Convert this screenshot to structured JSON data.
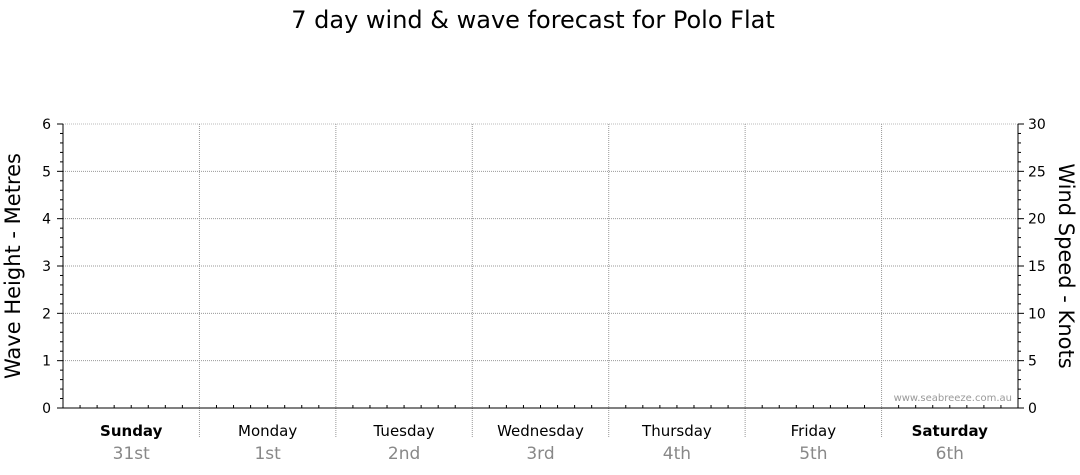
{
  "chart_data": {
    "type": "line",
    "title": "7 day wind & wave forecast for Polo Flat",
    "left_axis": {
      "label": "Wave Height - Metres",
      "range": [
        0,
        6
      ],
      "ticks": [
        "0",
        "1",
        "2",
        "3",
        "4",
        "5",
        "6"
      ]
    },
    "right_axis": {
      "label": "Wind Speed - Knots",
      "range": [
        0,
        30
      ],
      "ticks": [
        "0",
        "5",
        "10",
        "15",
        "20",
        "25",
        "30"
      ]
    },
    "days": [
      {
        "name": "Sunday",
        "date": "31st",
        "bold": true
      },
      {
        "name": "Monday",
        "date": "1st",
        "bold": false
      },
      {
        "name": "Tuesday",
        "date": "2nd",
        "bold": false
      },
      {
        "name": "Wednesday",
        "date": "3rd",
        "bold": false
      },
      {
        "name": "Thursday",
        "date": "4th",
        "bold": false
      },
      {
        "name": "Friday",
        "date": "5th",
        "bold": false
      },
      {
        "name": "Saturday",
        "date": "6th",
        "bold": true
      }
    ],
    "series": [],
    "grid": true,
    "watermark": "www.seabreeze.com.au"
  }
}
